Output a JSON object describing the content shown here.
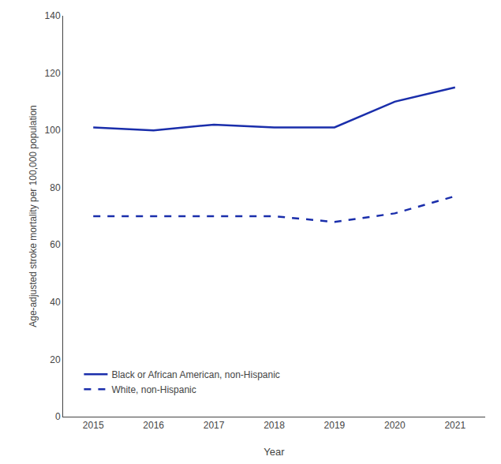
{
  "chart_data": {
    "type": "line",
    "xlabel": "Year",
    "ylabel": "Age-adjusted stroke mortality per 100,000 population",
    "x": [
      2015,
      2016,
      2017,
      2018,
      2019,
      2020,
      2021
    ],
    "xlim": [
      2014.5,
      2021.5
    ],
    "xticks": [
      2015,
      2016,
      2017,
      2018,
      2019,
      2020,
      2021
    ],
    "ylim": [
      0,
      140
    ],
    "yticks": [
      0,
      20,
      40,
      60,
      80,
      100,
      120,
      140
    ],
    "grid": false,
    "legend": "lower left",
    "series": [
      {
        "name": "Black or African American, non-Hispanic",
        "color": "#1a2eab",
        "line_style": "solid",
        "values": [
          101,
          100,
          102,
          101,
          101,
          110,
          115
        ]
      },
      {
        "name": "White, non-Hispanic",
        "color": "#1a2eab",
        "line_style": "dashed",
        "values": [
          70,
          70,
          70,
          70,
          68,
          71,
          77
        ]
      }
    ]
  }
}
